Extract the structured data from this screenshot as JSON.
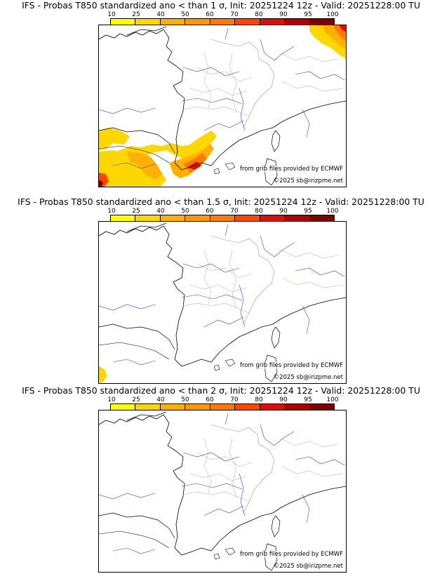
{
  "colorbar": {
    "ticks": [
      "10",
      "25",
      "40",
      "50",
      "60",
      "70",
      "80",
      "90",
      "95",
      "100"
    ],
    "colors": [
      "#ffff00",
      "#ffd700",
      "#ffb000",
      "#ff9800",
      "#ff7a00",
      "#ff4500",
      "#e01000",
      "#b00000",
      "#800000",
      "#400000"
    ]
  },
  "panels": [
    {
      "title": "IFS - Probas T850  standardized ano < than 1 σ, Init: 20251224 12z - Valid: 20251228:00 TU",
      "credit": "from grib files provided by ECMWF",
      "copyright": "©2025 sb@irizpme.net"
    },
    {
      "title": "IFS - Probas T850  standardized ano < than 1.5 σ, Init: 20251224 12z - Valid: 20251228:00 TU",
      "credit": "from grib files provided by ECMWF",
      "copyright": "©2025 sb@irizpme.net"
    },
    {
      "title": "IFS - Probas T850  standardized ano < than 2 σ, Init: 20251224 12z - Valid: 20251228:00 TU",
      "credit": "from grib files provided by ECMWF",
      "copyright": "©2025 sb@irizpme.net"
    }
  ]
}
